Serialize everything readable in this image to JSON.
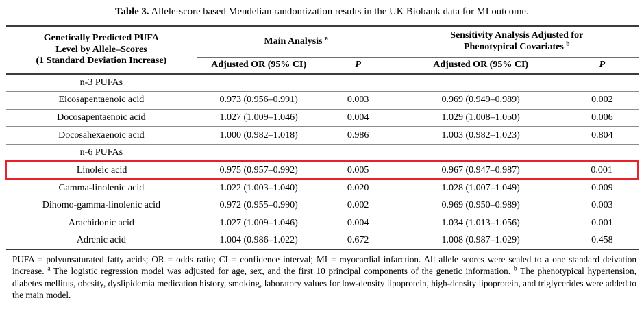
{
  "title": {
    "label": "Table 3.",
    "text": " Allele-score based Mendelian randomization results in the UK Biobank data for MI outcome."
  },
  "colors": {
    "highlight_border": "#e8222a",
    "thick_rule": "#3c3c3c",
    "thin_rule": "#8c8c8c",
    "text": "#000000"
  },
  "table": {
    "header": {
      "col1_line1": "Genetically Predicted PUFA",
      "col1_line2": "Level by Allele–Scores",
      "col1_line3": "(1 Standard Deviation Increase)",
      "main_analysis_label": "Main Analysis",
      "main_analysis_sup": "a",
      "sensitivity_line1": "Sensitivity Analysis Adjusted for",
      "sensitivity_line2": "Phenotypical Covariates",
      "sensitivity_sup": "b",
      "adjusted_or_main": "Adjusted OR (95% CI)",
      "p_main": "P",
      "adjusted_or_sens": "Adjusted OR (95% CI)",
      "p_sens": "P"
    },
    "sections": [
      {
        "label": "n-3 PUFAs",
        "rows": [
          {
            "name": "Eicosapentaenoic acid",
            "or_main": "0.973 (0.956–0.991)",
            "p_main": "0.003",
            "or_sens": "0.969 (0.949–0.989)",
            "p_sens": "0.002"
          },
          {
            "name": "Docosapentaenoic acid",
            "or_main": "1.027 (1.009–1.046)",
            "p_main": "0.004",
            "or_sens": "1.029 (1.008–1.050)",
            "p_sens": "0.006"
          },
          {
            "name": "Docosahexaenoic acid",
            "or_main": "1.000 (0.982–1.018)",
            "p_main": "0.986",
            "or_sens": "1.003 (0.982–1.023)",
            "p_sens": "0.804"
          }
        ]
      },
      {
        "label": "n-6 PUFAs",
        "rows": [
          {
            "name": "Linoleic acid",
            "highlighted": true,
            "or_main": "0.975 (0.957–0.992)",
            "p_main": "0.005",
            "or_sens": "0.967 (0.947–0.987)",
            "p_sens": "0.001"
          },
          {
            "name": "Gamma-linolenic acid",
            "or_main": "1.022 (1.003–1.040)",
            "p_main": "0.020",
            "or_sens": "1.028 (1.007–1.049)",
            "p_sens": "0.009"
          },
          {
            "name": "Dihomo-gamma-linolenic acid",
            "or_main": "0.972 (0.955–0.990)",
            "p_main": "0.002",
            "or_sens": "0.969 (0.950–0.989)",
            "p_sens": "0.003"
          },
          {
            "name": "Arachidonic acid",
            "or_main": "1.027 (1.009–1.046)",
            "p_main": "0.004",
            "or_sens": "1.034 (1.013–1.056)",
            "p_sens": "0.001"
          },
          {
            "name": "Adrenic acid",
            "or_main": "1.004 (0.986–1.022)",
            "p_main": "0.672",
            "or_sens": "1.008 (0.987–1.029)",
            "p_sens": "0.458"
          }
        ]
      }
    ]
  },
  "footnote": {
    "part1": "PUFA = polyunsaturated fatty acids; OR = odds ratio; CI = confidence interval; MI = myocardial infarction. All allele scores were scaled to a one standard deivation increase. ",
    "sup_a": "a",
    "part2": " The logistic regression model was adjusted for age, sex, and the first 10 principal components of the genetic information. ",
    "sup_b": "b",
    "part3": " The phenotypical hypertension, diabetes mellitus, obesity, dyslipidemia medication history, smoking, laboratory values for low-density lipoprotein, high-density lipoprotein, and triglycerides were added to the main model."
  }
}
